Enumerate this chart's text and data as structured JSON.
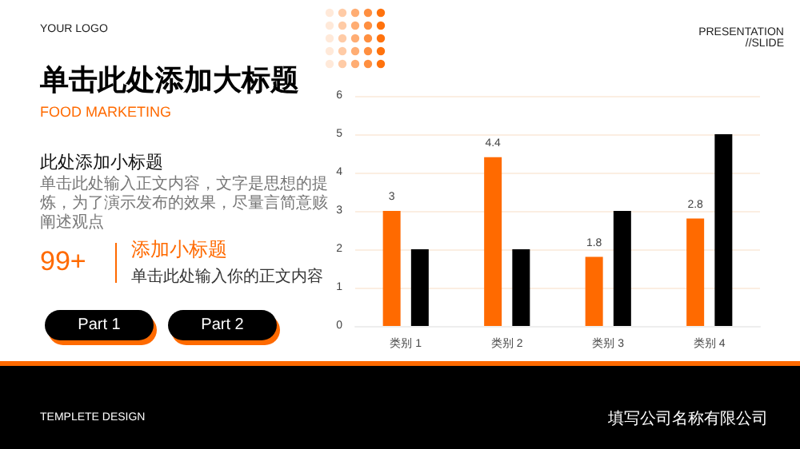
{
  "chart_data": {
    "type": "bar",
    "title": "单击此处添加大标题",
    "subtitle": "FOOD MARKETING",
    "annotations": [
      "YOUR LOGO",
      "PRESENTATION //SLIDE",
      "此处添加小标题",
      "单击此处输入正文内容，文字是思想的提炼，为了演示发布的效果，尽量言简意赅阐述观点",
      "99+",
      "添加小标题",
      "单击此处输入你的正文内容",
      "Part 1",
      "Part 2",
      "TEMPLETE DESIGN",
      "填写公司名称有限公司"
    ],
    "categories": [
      "类别 1",
      "类别 2",
      "类别 3",
      "类别 4"
    ],
    "series": [
      {
        "color": "#ff6a00",
        "values": [
          3,
          4.4,
          1.8,
          2.8
        ],
        "value_labels": [
          "3",
          "4.4",
          "1.8",
          "2.8"
        ]
      },
      {
        "color": "#000000",
        "values": [
          2,
          2,
          3,
          5
        ]
      }
    ],
    "ylim": [
      0,
      6
    ],
    "yticks": [
      0,
      1,
      2,
      3,
      4,
      5,
      6
    ],
    "grid": "y"
  }
}
